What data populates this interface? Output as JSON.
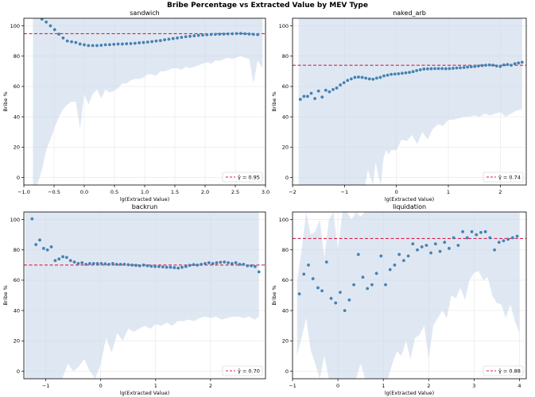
{
  "figure": {
    "title": "Bribe Percentage vs Extracted Value by MEV Type"
  },
  "colors": {
    "band": "#c9d9ea",
    "points": "#4682b4",
    "reference_line": "#d6204e",
    "grid": "#e6e6e6"
  },
  "chart_data": [
    {
      "type": "scatter",
      "title": "sandwich",
      "xlabel": "lg(Extracted Value)",
      "ylabel": "Bribe %",
      "xlim": [
        -1.0,
        3.0
      ],
      "ylim": [
        -5,
        105
      ],
      "xticks": [
        -1.0,
        -0.5,
        0.0,
        0.5,
        1.0,
        1.5,
        2.0,
        2.5,
        3.0
      ],
      "xtick_labels": [
        "−1.0",
        "−0.5",
        "0.0",
        "0.5",
        "1.0",
        "1.5",
        "2.0",
        "2.5",
        "3.0"
      ],
      "yticks": [
        0,
        20,
        40,
        60,
        80,
        100
      ],
      "reference_line": {
        "y": 94.8,
        "label": "γ̂ = 0.95"
      },
      "legend_position": "lower-right",
      "points": {
        "x": [
          -0.7,
          -0.63,
          -0.56,
          -0.49,
          -0.42,
          -0.35,
          -0.28,
          -0.21,
          -0.14,
          -0.07,
          0.0,
          0.07,
          0.14,
          0.21,
          0.28,
          0.35,
          0.42,
          0.49,
          0.56,
          0.63,
          0.7,
          0.77,
          0.84,
          0.91,
          0.98,
          1.05,
          1.12,
          1.19,
          1.26,
          1.33,
          1.4,
          1.47,
          1.54,
          1.61,
          1.68,
          1.75,
          1.82,
          1.89,
          1.96,
          2.03,
          2.1,
          2.17,
          2.24,
          2.31,
          2.38,
          2.45,
          2.52,
          2.59,
          2.66,
          2.73,
          2.8,
          2.87
        ],
        "y": [
          104.5,
          102.5,
          100.0,
          97.5,
          94.5,
          92.0,
          90.0,
          89.5,
          89.0,
          88.0,
          87.5,
          87.0,
          87.0,
          87.0,
          87.2,
          87.5,
          87.6,
          87.8,
          88.0,
          88.0,
          88.2,
          88.3,
          88.5,
          88.8,
          89.0,
          89.3,
          89.6,
          90.0,
          90.3,
          90.8,
          91.2,
          91.6,
          92.0,
          92.4,
          92.8,
          93.1,
          93.4,
          93.7,
          93.9,
          94.1,
          94.3,
          94.4,
          94.5,
          94.6,
          94.7,
          94.8,
          94.9,
          95.0,
          94.8,
          94.6,
          94.4,
          94.2
        ]
      },
      "band": {
        "x": [
          -0.85,
          -0.78,
          -0.7,
          -0.63,
          -0.56,
          -0.49,
          -0.42,
          -0.35,
          -0.28,
          -0.21,
          -0.14,
          -0.07,
          0.0,
          0.07,
          0.14,
          0.21,
          0.28,
          0.35,
          0.42,
          0.49,
          0.56,
          0.63,
          0.7,
          0.77,
          0.84,
          0.91,
          0.98,
          1.05,
          1.12,
          1.19,
          1.26,
          1.33,
          1.4,
          1.47,
          1.54,
          1.61,
          1.68,
          1.75,
          1.82,
          1.89,
          1.96,
          2.03,
          2.1,
          2.17,
          2.24,
          2.31,
          2.38,
          2.45,
          2.52,
          2.59,
          2.66,
          2.73,
          2.8,
          2.87,
          2.95
        ],
        "low": [
          -5,
          -5,
          5,
          18,
          25,
          33,
          40,
          45,
          48,
          50,
          50,
          32,
          55,
          48,
          55,
          58,
          52,
          58,
          56,
          57,
          59,
          62,
          62,
          64,
          65,
          65,
          66,
          68,
          68,
          67,
          70,
          70,
          71,
          72,
          72,
          71,
          73,
          72,
          73,
          74,
          75,
          76,
          75,
          77,
          77,
          78,
          79,
          78,
          79,
          80,
          79,
          78,
          62,
          77,
          72
        ],
        "high": [
          105,
          105,
          105,
          105,
          105,
          105,
          105,
          105,
          105,
          105,
          105,
          105,
          105,
          105,
          105,
          105,
          105,
          105,
          105,
          105,
          105,
          105,
          105,
          105,
          105,
          105,
          105,
          105,
          105,
          105,
          105,
          105,
          105,
          105,
          105,
          105,
          105,
          105,
          105,
          105,
          105,
          105,
          105,
          105,
          105,
          105,
          105,
          105,
          105,
          105,
          105,
          105,
          105,
          105,
          105
        ]
      }
    },
    {
      "type": "scatter",
      "title": "naked_arb",
      "xlabel": "lg(Extracted Value)",
      "ylabel": "Bribe %",
      "xlim": [
        -2.0,
        2.5
      ],
      "ylim": [
        -5,
        105
      ],
      "xticks": [
        -2,
        -1,
        0,
        1,
        2
      ],
      "xtick_labels": [
        "−2",
        "−1",
        "0",
        "1",
        "2"
      ],
      "yticks": [
        0,
        20,
        40,
        60,
        80,
        100
      ],
      "reference_line": {
        "y": 74.0,
        "label": "γ̂ = 0.74"
      },
      "legend_position": "lower-right",
      "points": {
        "x": [
          -1.85,
          -1.78,
          -1.71,
          -1.64,
          -1.57,
          -1.5,
          -1.43,
          -1.36,
          -1.29,
          -1.22,
          -1.15,
          -1.08,
          -1.01,
          -0.94,
          -0.87,
          -0.8,
          -0.73,
          -0.66,
          -0.59,
          -0.52,
          -0.45,
          -0.38,
          -0.31,
          -0.24,
          -0.17,
          -0.1,
          -0.03,
          0.04,
          0.11,
          0.18,
          0.25,
          0.32,
          0.39,
          0.46,
          0.53,
          0.6,
          0.67,
          0.74,
          0.81,
          0.88,
          0.95,
          1.02,
          1.09,
          1.16,
          1.23,
          1.3,
          1.37,
          1.44,
          1.51,
          1.58,
          1.65,
          1.72,
          1.79,
          1.86,
          1.93,
          2.0,
          2.07,
          2.14,
          2.21,
          2.28,
          2.35,
          2.42
        ],
        "y": [
          51.5,
          53.5,
          53.5,
          55.5,
          52.0,
          57.0,
          53.0,
          57.5,
          56.5,
          58.0,
          59.0,
          61.0,
          62.5,
          64.0,
          65.0,
          66.0,
          66.2,
          66.0,
          65.5,
          65.0,
          64.8,
          65.5,
          66.0,
          67.0,
          67.5,
          68.0,
          68.2,
          68.4,
          68.7,
          69.0,
          69.3,
          69.8,
          70.5,
          71.0,
          71.5,
          71.6,
          71.7,
          71.8,
          71.8,
          71.8,
          71.7,
          71.8,
          72.0,
          72.2,
          72.3,
          72.5,
          72.8,
          73.0,
          73.2,
          73.5,
          73.8,
          74.0,
          74.2,
          74.0,
          73.5,
          73.2,
          74.2,
          74.5,
          74.0,
          75.0,
          75.5,
          76.0
        ]
      },
      "band": {
        "x": [
          -1.88,
          -1.8,
          -1.7,
          -1.6,
          -1.5,
          -1.4,
          -1.3,
          -1.2,
          -1.1,
          -1.0,
          -0.9,
          -0.8,
          -0.7,
          -0.6,
          -0.55,
          -0.5,
          -0.45,
          -0.4,
          -0.35,
          -0.3,
          -0.25,
          -0.2,
          -0.15,
          -0.1,
          0.0,
          0.1,
          0.2,
          0.3,
          0.4,
          0.5,
          0.6,
          0.7,
          0.8,
          0.9,
          1.0,
          1.1,
          1.2,
          1.3,
          1.4,
          1.5,
          1.6,
          1.7,
          1.8,
          1.9,
          2.0,
          2.1,
          2.2,
          2.3,
          2.42
        ],
        "low": [
          -5,
          -5,
          -5,
          -5,
          -5,
          -5,
          -5,
          -5,
          -5,
          -5,
          -5,
          -5,
          -5,
          -5,
          5,
          0,
          -5,
          10,
          1,
          -5,
          12,
          18,
          15,
          18,
          18,
          25,
          24,
          28,
          22,
          30,
          25,
          32,
          35,
          34,
          38,
          38,
          39,
          40,
          40,
          41,
          40,
          42,
          41,
          42,
          43,
          40,
          42,
          44,
          45
        ],
        "high": [
          105,
          105,
          105,
          105,
          105,
          105,
          105,
          105,
          105,
          105,
          105,
          105,
          105,
          105,
          105,
          105,
          105,
          105,
          105,
          105,
          105,
          105,
          105,
          105,
          105,
          105,
          105,
          105,
          105,
          105,
          105,
          105,
          105,
          105,
          105,
          105,
          105,
          105,
          105,
          105,
          105,
          105,
          105,
          105,
          105,
          105,
          105,
          105,
          105
        ]
      }
    },
    {
      "type": "scatter",
      "title": "backrun",
      "xlabel": "lg(Extracted Value)",
      "ylabel": "Bribe %",
      "xlim": [
        -1.4,
        3.0
      ],
      "ylim": [
        -5,
        105
      ],
      "xticks": [
        -1,
        0,
        1,
        2
      ],
      "xtick_labels": [
        "−1",
        "0",
        "1",
        "2"
      ],
      "yticks": [
        0,
        20,
        40,
        60,
        80,
        100
      ],
      "reference_line": {
        "y": 70.0,
        "label": "γ̂ = 0.70"
      },
      "legend_position": "lower-right",
      "points": {
        "x": [
          -1.25,
          -1.18,
          -1.11,
          -1.04,
          -0.97,
          -0.9,
          -0.83,
          -0.76,
          -0.69,
          -0.62,
          -0.55,
          -0.48,
          -0.41,
          -0.34,
          -0.27,
          -0.2,
          -0.13,
          -0.06,
          0.01,
          0.08,
          0.15,
          0.22,
          0.29,
          0.36,
          0.43,
          0.5,
          0.57,
          0.64,
          0.71,
          0.78,
          0.85,
          0.92,
          0.99,
          1.06,
          1.13,
          1.2,
          1.27,
          1.34,
          1.41,
          1.48,
          1.55,
          1.62,
          1.69,
          1.76,
          1.83,
          1.9,
          1.97,
          2.04,
          2.11,
          2.18,
          2.25,
          2.32,
          2.39,
          2.46,
          2.53,
          2.6,
          2.67,
          2.74,
          2.81,
          2.88
        ],
        "y": [
          100.5,
          83.5,
          86.5,
          81.0,
          80.0,
          82.0,
          73.0,
          74.0,
          75.5,
          75.0,
          73.0,
          72.0,
          71.0,
          71.5,
          70.5,
          71.0,
          71.0,
          71.0,
          71.0,
          70.8,
          70.5,
          71.0,
          70.5,
          70.5,
          70.5,
          70.2,
          70.0,
          69.8,
          69.5,
          70.0,
          69.5,
          69.2,
          69.0,
          69.0,
          68.8,
          68.5,
          68.5,
          68.3,
          68.0,
          68.5,
          69.0,
          69.8,
          70.3,
          70.0,
          70.5,
          71.0,
          71.5,
          71.0,
          71.5,
          71.8,
          72.0,
          71.5,
          71.0,
          71.5,
          70.5,
          70.5,
          69.5,
          69.5,
          69.0,
          65.5
        ]
      },
      "band": {
        "x": [
          -1.38,
          -1.3,
          -1.2,
          -1.1,
          -1.0,
          -0.9,
          -0.8,
          -0.7,
          -0.6,
          -0.5,
          -0.4,
          -0.3,
          -0.2,
          -0.1,
          0.0,
          0.1,
          0.2,
          0.3,
          0.4,
          0.5,
          0.6,
          0.7,
          0.8,
          0.9,
          1.0,
          1.1,
          1.2,
          1.3,
          1.4,
          1.5,
          1.6,
          1.7,
          1.8,
          1.9,
          2.0,
          2.1,
          2.2,
          2.3,
          2.4,
          2.5,
          2.6,
          2.7,
          2.8,
          2.88
        ],
        "low": [
          -5,
          -5,
          -5,
          -5,
          -5,
          -5,
          -5,
          -5,
          5,
          0,
          3,
          8,
          0,
          -5,
          5,
          22,
          12,
          25,
          20,
          28,
          26,
          28,
          30,
          28,
          31,
          30,
          32,
          30,
          33,
          33,
          34,
          33,
          35,
          36,
          35,
          36,
          34,
          35,
          36,
          36,
          35,
          36,
          34,
          36
        ],
        "high": [
          105,
          105,
          105,
          105,
          105,
          105,
          105,
          105,
          105,
          105,
          105,
          105,
          105,
          105,
          105,
          105,
          105,
          105,
          105,
          105,
          105,
          105,
          105,
          105,
          105,
          105,
          105,
          105,
          105,
          105,
          105,
          105,
          105,
          105,
          105,
          105,
          105,
          105,
          105,
          105,
          105,
          105,
          105,
          105
        ]
      }
    },
    {
      "type": "scatter",
      "title": "liquidation",
      "xlabel": "lg(Extracted Value)",
      "ylabel": "Bribe %",
      "xlim": [
        -1.0,
        4.15
      ],
      "ylim": [
        -5,
        105
      ],
      "xticks": [
        -1,
        0,
        1,
        2,
        3,
        4
      ],
      "xtick_labels": [
        "−1",
        "0",
        "1",
        "2",
        "3",
        "4"
      ],
      "yticks": [
        0,
        20,
        40,
        60,
        80,
        100
      ],
      "reference_line": {
        "y": 87.5,
        "label": "γ̂ = 0.88"
      },
      "legend_position": "lower-right",
      "points": {
        "x": [
          -0.85,
          -0.75,
          -0.65,
          -0.55,
          -0.44,
          -0.35,
          -0.25,
          -0.15,
          -0.05,
          0.05,
          0.15,
          0.25,
          0.35,
          0.45,
          0.55,
          0.65,
          0.75,
          0.85,
          0.95,
          1.05,
          1.15,
          1.25,
          1.35,
          1.45,
          1.55,
          1.65,
          1.75,
          1.85,
          1.95,
          2.05,
          2.15,
          2.25,
          2.35,
          2.45,
          2.55,
          2.65,
          2.75,
          2.85,
          2.95,
          3.05,
          3.15,
          3.25,
          3.35,
          3.45,
          3.55,
          3.65,
          3.75,
          3.85,
          3.95
        ],
        "y": [
          51.0,
          64.0,
          70.0,
          61.0,
          55.0,
          53.0,
          72.0,
          48.0,
          45.0,
          52.0,
          40.0,
          47.0,
          57.0,
          77.0,
          62.0,
          54.5,
          57.0,
          64.5,
          76.0,
          57.0,
          67.0,
          70.0,
          77.0,
          73.0,
          76.0,
          84.0,
          80.0,
          82.0,
          83.0,
          78.0,
          84.0,
          79.0,
          85.0,
          81.0,
          88.0,
          83.0,
          92.0,
          88.0,
          92.0,
          90.0,
          91.5,
          92.0,
          88.0,
          80.0,
          85.0,
          86.0,
          87.0,
          88.0,
          89.0
        ]
      },
      "band": {
        "x": [
          -0.9,
          -0.8,
          -0.7,
          -0.6,
          -0.5,
          -0.4,
          -0.3,
          -0.2,
          -0.1,
          0.0,
          0.1,
          0.2,
          0.3,
          0.4,
          0.5,
          0.6,
          0.7,
          0.8,
          0.9,
          1.0,
          1.1,
          1.2,
          1.3,
          1.4,
          1.5,
          1.6,
          1.7,
          1.8,
          1.9,
          2.0,
          2.1,
          2.2,
          2.3,
          2.4,
          2.5,
          2.6,
          2.7,
          2.8,
          2.9,
          3.0,
          3.1,
          3.2,
          3.3,
          3.4,
          3.5,
          3.6,
          3.7,
          3.8,
          3.9,
          4.0
        ],
        "low": [
          10,
          22,
          35,
          14,
          5,
          -5,
          10,
          -5,
          -5,
          -5,
          -5,
          -5,
          -5,
          -5,
          5,
          -5,
          -5,
          -5,
          -5,
          -5,
          -5,
          5,
          13,
          10,
          20,
          8,
          22,
          24,
          30,
          8,
          30,
          35,
          40,
          35,
          50,
          48,
          55,
          47,
          60,
          65,
          66,
          60,
          62,
          50,
          45,
          44,
          35,
          44,
          33,
          25
        ],
        "high": [
          60,
          80,
          105,
          90,
          92,
          100,
          75,
          100,
          105,
          80,
          105,
          105,
          100,
          105,
          102,
          105,
          105,
          105,
          105,
          105,
          105,
          105,
          105,
          105,
          105,
          105,
          105,
          105,
          105,
          105,
          105,
          105,
          105,
          105,
          105,
          105,
          105,
          105,
          105,
          105,
          105,
          105,
          105,
          105,
          105,
          105,
          105,
          105,
          105,
          105
        ]
      }
    }
  ]
}
